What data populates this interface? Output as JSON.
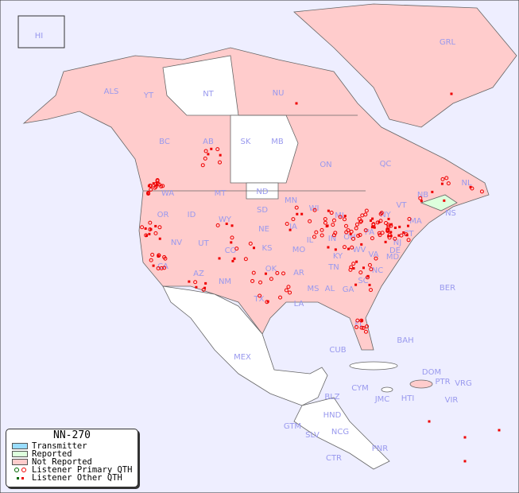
{
  "title": "NN-270",
  "colors": {
    "ocean": "#eeeeff",
    "not_reported": "#ffcccc",
    "reported": "#ddffdd",
    "transmitter": "#99ddff",
    "unlisted": "#ffffff",
    "marker": "#ee0000",
    "marker_reported": "#006600",
    "label": "#9999ee"
  },
  "legend": {
    "title": "NN-270",
    "items": [
      {
        "label": "Transmitter",
        "color": "#99ddff"
      },
      {
        "label": "Reported",
        "color": "#ddffdd"
      },
      {
        "label": "Not Reported",
        "color": "#ffcccc"
      },
      {
        "label": "Listener Primary QTH",
        "icon": "ring-marker"
      },
      {
        "label": "Listener Other QTH",
        "icon": "square-marker"
      }
    ]
  },
  "regions": [
    "HI",
    "ALS",
    "YT",
    "NT",
    "NU",
    "GRL",
    "BC",
    "AB",
    "SK",
    "MB",
    "ON",
    "QC",
    "NL",
    "NB",
    "NS",
    "WA",
    "MT",
    "ND",
    "MN",
    "OR",
    "ID",
    "WY",
    "SD",
    "WI",
    "MI",
    "NY",
    "VT",
    "MA",
    "CT",
    "NV",
    "UT",
    "CO",
    "NE",
    "IA",
    "IL",
    "IN",
    "OH",
    "PA",
    "NJ",
    "DE",
    "MD",
    "KS",
    "MO",
    "KY",
    "WV",
    "VA",
    "CA",
    "AZ",
    "NM",
    "OK",
    "AR",
    "TN",
    "NC",
    "SC",
    "TX",
    "LA",
    "MS",
    "AL",
    "GA",
    "FL",
    "MEX",
    "CUB",
    "BAH",
    "BER",
    "DOM",
    "PTR",
    "VRG",
    "CYM",
    "JMC",
    "HTI",
    "VIR",
    "BLZ",
    "HND",
    "GTM",
    "SLV",
    "NCG",
    "CTR",
    "PNR"
  ]
}
